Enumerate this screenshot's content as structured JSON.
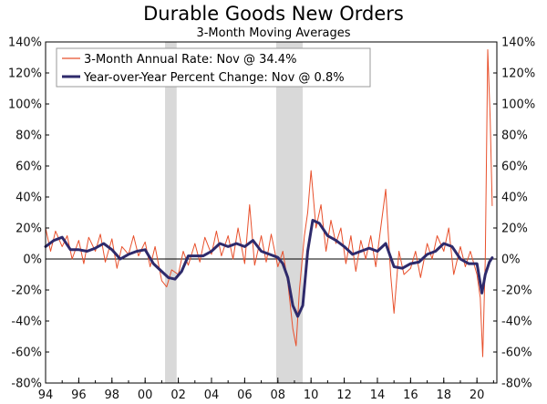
{
  "chart_data": {
    "type": "line",
    "title": "Durable Goods New Orders",
    "subtitle": "3-Month Moving Averages",
    "xlabel": "",
    "ylabel": "",
    "xlim": [
      1994,
      2021.2
    ],
    "ylim": [
      -80,
      140
    ],
    "x_tick_values": [
      1994,
      1996,
      1998,
      2000,
      2002,
      2004,
      2006,
      2008,
      2010,
      2012,
      2014,
      2016,
      2018,
      2020
    ],
    "x_tick_labels": [
      "94",
      "96",
      "98",
      "00",
      "02",
      "04",
      "06",
      "08",
      "10",
      "12",
      "14",
      "16",
      "18",
      "20"
    ],
    "y_tick_values": [
      140,
      120,
      100,
      80,
      60,
      40,
      20,
      0,
      -20,
      -40,
      -60,
      -80
    ],
    "y_tick_labels": [
      "140%",
      "120%",
      "100%",
      "80%",
      "60%",
      "40%",
      "20%",
      "0%",
      "-20%",
      "-40%",
      "-60%",
      "-80%"
    ],
    "recessions": [
      [
        2001.2,
        2001.9
      ],
      [
        2007.9,
        2009.5
      ]
    ],
    "legend": [
      "3-Month Annual Rate: Nov @ 34.4%",
      "Year-over-Year Percent Change: Nov @ 0.8%"
    ],
    "series": [
      {
        "name": "3-Month Annual Rate: Nov @ 34.4%",
        "color": "#e8502c",
        "points": [
          [
            1994.0,
            20
          ],
          [
            1994.3,
            5
          ],
          [
            1994.6,
            18
          ],
          [
            1995.0,
            8
          ],
          [
            1995.3,
            15
          ],
          [
            1995.6,
            0
          ],
          [
            1996.0,
            12
          ],
          [
            1996.3,
            -3
          ],
          [
            1996.6,
            14
          ],
          [
            1997.0,
            5
          ],
          [
            1997.3,
            16
          ],
          [
            1997.6,
            -2
          ],
          [
            1998.0,
            13
          ],
          [
            1998.3,
            -6
          ],
          [
            1998.6,
            8
          ],
          [
            1999.0,
            3
          ],
          [
            1999.3,
            15
          ],
          [
            1999.6,
            2
          ],
          [
            2000.0,
            11
          ],
          [
            2000.3,
            -5
          ],
          [
            2000.6,
            8
          ],
          [
            2001.0,
            -14
          ],
          [
            2001.3,
            -18
          ],
          [
            2001.6,
            -7
          ],
          [
            2002.0,
            -10
          ],
          [
            2002.3,
            5
          ],
          [
            2002.6,
            -4
          ],
          [
            2003.0,
            10
          ],
          [
            2003.3,
            -2
          ],
          [
            2003.6,
            14
          ],
          [
            2004.0,
            3
          ],
          [
            2004.3,
            18
          ],
          [
            2004.6,
            2
          ],
          [
            2005.0,
            15
          ],
          [
            2005.3,
            0
          ],
          [
            2005.6,
            20
          ],
          [
            2006.0,
            -3
          ],
          [
            2006.3,
            35
          ],
          [
            2006.6,
            -4
          ],
          [
            2007.0,
            15
          ],
          [
            2007.3,
            -2
          ],
          [
            2007.6,
            16
          ],
          [
            2008.0,
            -5
          ],
          [
            2008.3,
            5
          ],
          [
            2008.6,
            -15
          ],
          [
            2008.9,
            -45
          ],
          [
            2009.1,
            -56
          ],
          [
            2009.3,
            -20
          ],
          [
            2009.6,
            15
          ],
          [
            2009.8,
            30
          ],
          [
            2010.0,
            57
          ],
          [
            2010.3,
            20
          ],
          [
            2010.6,
            35
          ],
          [
            2010.9,
            5
          ],
          [
            2011.2,
            25
          ],
          [
            2011.5,
            10
          ],
          [
            2011.8,
            20
          ],
          [
            2012.1,
            -3
          ],
          [
            2012.4,
            15
          ],
          [
            2012.7,
            -8
          ],
          [
            2013.0,
            12
          ],
          [
            2013.3,
            0
          ],
          [
            2013.6,
            15
          ],
          [
            2013.9,
            -5
          ],
          [
            2014.2,
            20
          ],
          [
            2014.5,
            45
          ],
          [
            2014.8,
            -10
          ],
          [
            2015.0,
            -35
          ],
          [
            2015.3,
            5
          ],
          [
            2015.6,
            -10
          ],
          [
            2016.0,
            -6
          ],
          [
            2016.3,
            5
          ],
          [
            2016.6,
            -12
          ],
          [
            2017.0,
            10
          ],
          [
            2017.3,
            0
          ],
          [
            2017.6,
            15
          ],
          [
            2018.0,
            5
          ],
          [
            2018.3,
            20
          ],
          [
            2018.6,
            -10
          ],
          [
            2019.0,
            8
          ],
          [
            2019.3,
            -5
          ],
          [
            2019.6,
            5
          ],
          [
            2020.0,
            -10
          ],
          [
            2020.2,
            -25
          ],
          [
            2020.35,
            -63
          ],
          [
            2020.5,
            0
          ],
          [
            2020.65,
            135
          ],
          [
            2020.8,
            90
          ],
          [
            2020.92,
            34.4
          ]
        ]
      },
      {
        "name": "Year-over-Year Percent Change: Nov @ 0.8%",
        "color": "#2e2a6b",
        "points": [
          [
            1994.0,
            8
          ],
          [
            1994.5,
            12
          ],
          [
            1995.0,
            14
          ],
          [
            1995.5,
            6
          ],
          [
            1996.0,
            6
          ],
          [
            1996.5,
            5
          ],
          [
            1997.0,
            7
          ],
          [
            1997.5,
            10
          ],
          [
            1998.0,
            6
          ],
          [
            1998.5,
            0
          ],
          [
            1999.0,
            3
          ],
          [
            1999.5,
            5
          ],
          [
            2000.0,
            6
          ],
          [
            2000.5,
            -3
          ],
          [
            2001.0,
            -8
          ],
          [
            2001.4,
            -12
          ],
          [
            2001.8,
            -13
          ],
          [
            2002.2,
            -8
          ],
          [
            2002.6,
            2
          ],
          [
            2003.0,
            2
          ],
          [
            2003.5,
            2
          ],
          [
            2004.0,
            5
          ],
          [
            2004.5,
            10
          ],
          [
            2005.0,
            8
          ],
          [
            2005.5,
            10
          ],
          [
            2006.0,
            8
          ],
          [
            2006.5,
            12
          ],
          [
            2007.0,
            5
          ],
          [
            2007.5,
            3
          ],
          [
            2008.0,
            1
          ],
          [
            2008.3,
            -3
          ],
          [
            2008.6,
            -12
          ],
          [
            2008.9,
            -30
          ],
          [
            2009.2,
            -37
          ],
          [
            2009.5,
            -30
          ],
          [
            2009.8,
            5
          ],
          [
            2010.1,
            25
          ],
          [
            2010.5,
            23
          ],
          [
            2011.0,
            15
          ],
          [
            2011.5,
            12
          ],
          [
            2012.0,
            8
          ],
          [
            2012.5,
            3
          ],
          [
            2013.0,
            5
          ],
          [
            2013.5,
            7
          ],
          [
            2014.0,
            5
          ],
          [
            2014.5,
            10
          ],
          [
            2015.0,
            -5
          ],
          [
            2015.5,
            -6
          ],
          [
            2016.0,
            -3
          ],
          [
            2016.5,
            -2
          ],
          [
            2017.0,
            3
          ],
          [
            2017.5,
            5
          ],
          [
            2018.0,
            10
          ],
          [
            2018.5,
            8
          ],
          [
            2019.0,
            0
          ],
          [
            2019.5,
            -3
          ],
          [
            2020.0,
            -3
          ],
          [
            2020.3,
            -22
          ],
          [
            2020.5,
            -10
          ],
          [
            2020.75,
            -2
          ],
          [
            2020.92,
            0.8
          ]
        ]
      }
    ]
  }
}
